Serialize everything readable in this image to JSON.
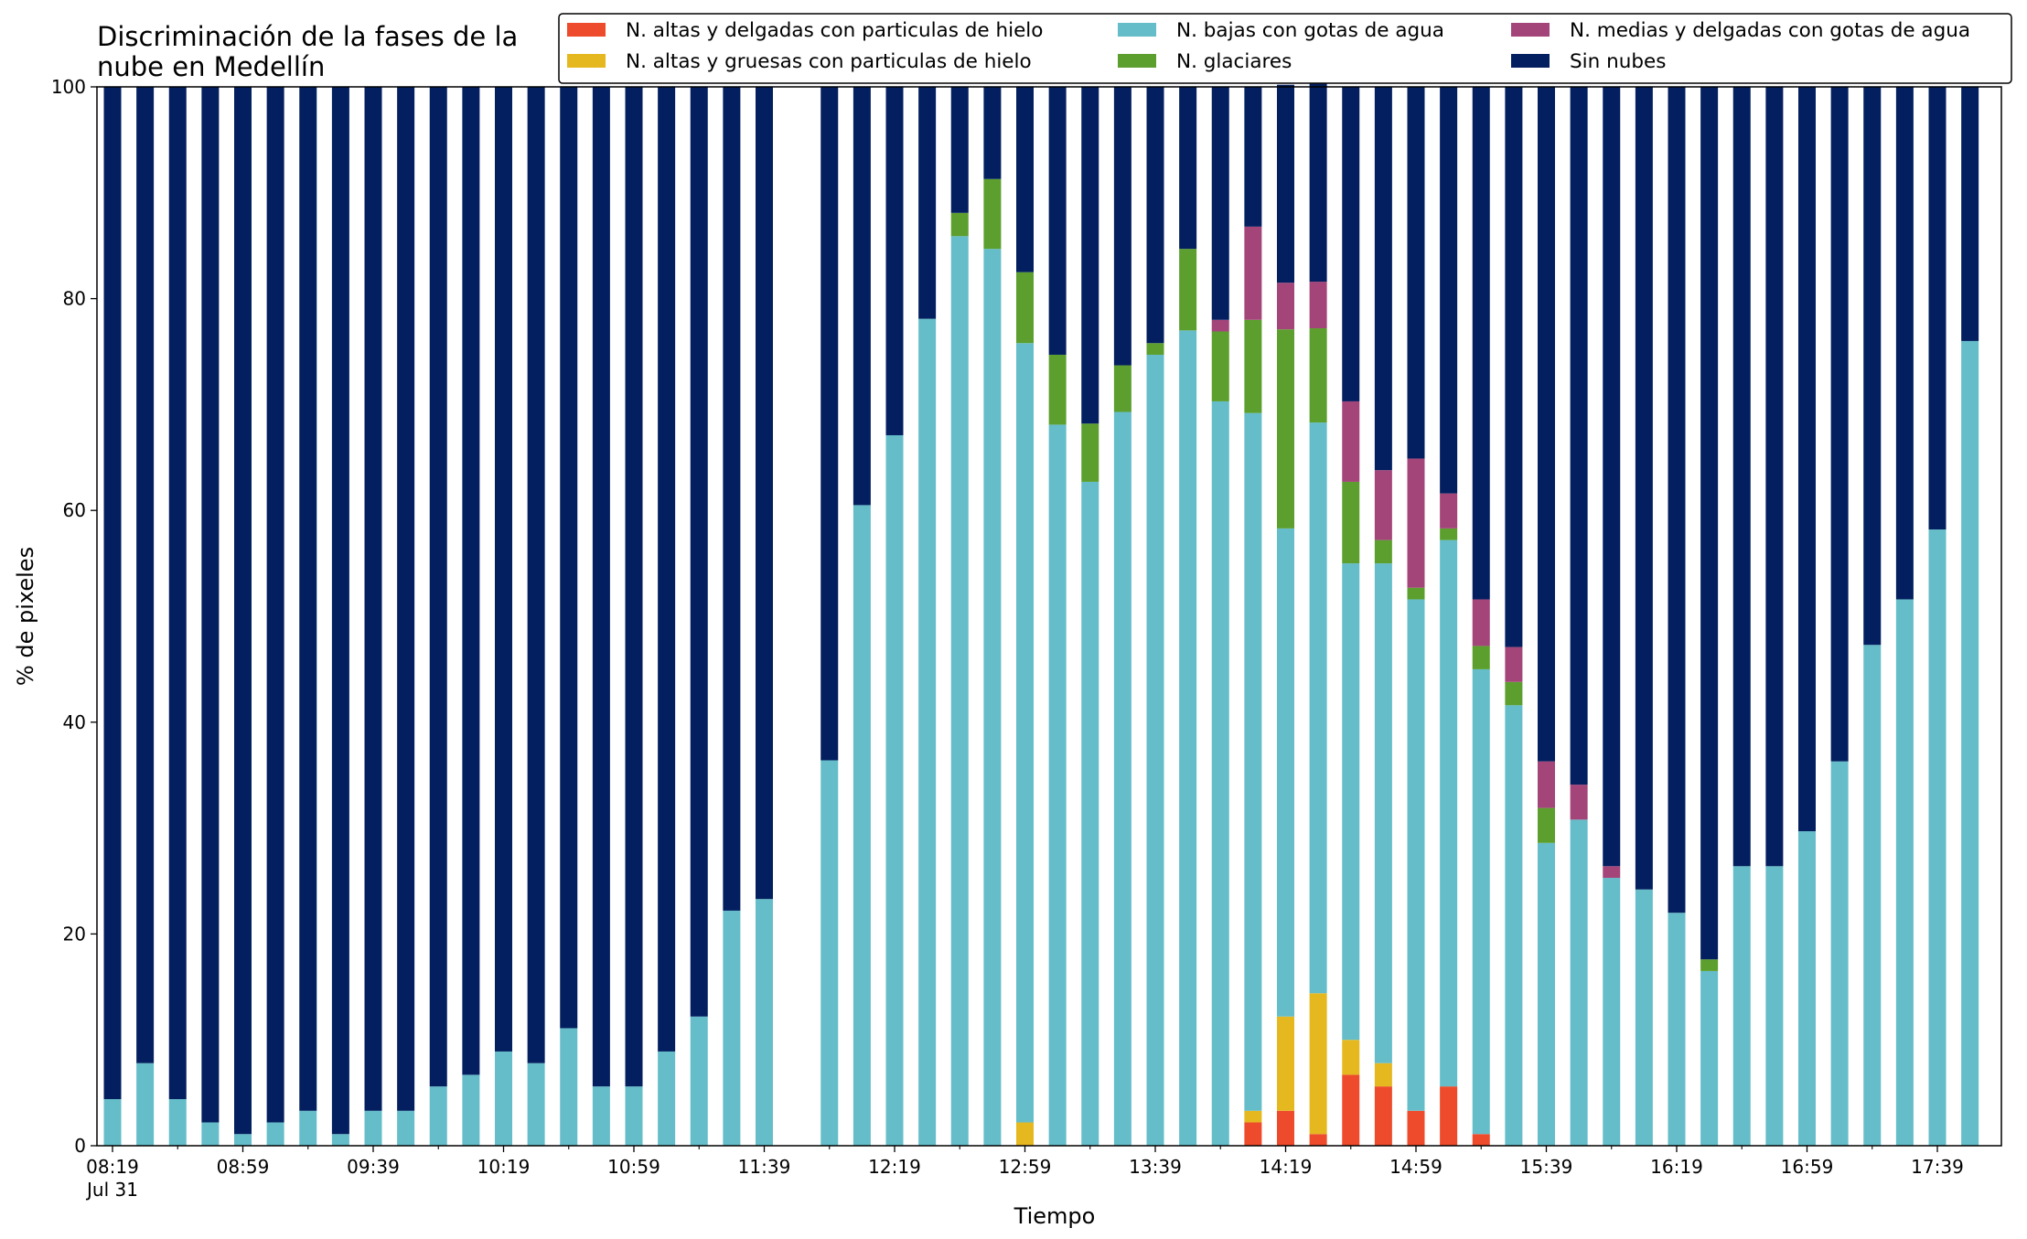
{
  "chart_data": {
    "type": "bar",
    "stacked": true,
    "title_lines": [
      "Discriminación de la fases de la",
      "nube en Medellín"
    ],
    "xlabel": "Tiempo",
    "ylabel": "% de pixeles",
    "ylim": [
      0,
      100
    ],
    "yticks": [
      0,
      20,
      40,
      60,
      80,
      100
    ],
    "xticks": [
      {
        "t": "08:19",
        "label": "08:19",
        "sublabel": "Jul 31"
      },
      {
        "t": "08:59",
        "label": "08:59"
      },
      {
        "t": "09:39",
        "label": "09:39"
      },
      {
        "t": "10:19",
        "label": "10:19"
      },
      {
        "t": "10:59",
        "label": "10:59"
      },
      {
        "t": "11:39",
        "label": "11:39"
      },
      {
        "t": "12:19",
        "label": "12:19"
      },
      {
        "t": "12:59",
        "label": "12:59"
      },
      {
        "t": "13:39",
        "label": "13:39"
      },
      {
        "t": "14:19",
        "label": "14:19"
      },
      {
        "t": "14:59",
        "label": "14:59"
      },
      {
        "t": "15:39",
        "label": "15:39"
      },
      {
        "t": "16:19",
        "label": "16:19"
      },
      {
        "t": "16:59",
        "label": "16:59"
      },
      {
        "t": "17:39",
        "label": "17:39"
      }
    ],
    "legend_location": "upper right",
    "grid": false,
    "categories": [
      "08:19",
      "08:29",
      "08:39",
      "08:49",
      "08:59",
      "09:09",
      "09:19",
      "09:29",
      "09:39",
      "09:49",
      "09:59",
      "10:09",
      "10:19",
      "10:29",
      "10:39",
      "10:49",
      "10:59",
      "11:09",
      "11:19",
      "11:29",
      "11:39",
      "11:49",
      "11:59",
      "12:09",
      "12:19",
      "12:29",
      "12:39",
      "12:49",
      "12:59",
      "13:09",
      "13:19",
      "13:29",
      "13:39",
      "13:49",
      "13:59",
      "14:09",
      "14:19",
      "14:29",
      "14:39",
      "14:49",
      "14:59",
      "15:09",
      "15:19",
      "15:29",
      "15:39",
      "15:49",
      "15:59",
      "16:09",
      "16:19",
      "16:29",
      "16:39",
      "16:49",
      "16:59",
      "17:09",
      "17:19",
      "17:29",
      "17:39",
      "17:49"
    ],
    "series": [
      {
        "name": "N. altas y delgadas con particulas de hielo",
        "color": "#ed4b2b",
        "values": [
          0,
          0,
          0,
          0,
          0,
          0,
          0,
          0,
          0,
          0,
          0,
          0,
          0,
          0,
          0,
          0,
          0,
          0,
          0,
          0,
          0,
          null,
          0,
          0,
          0,
          0,
          0,
          0,
          0,
          0,
          0,
          0,
          0,
          0,
          0,
          2.2,
          3.3,
          1.1,
          6.7,
          5.6,
          3.3,
          5.6,
          1.1,
          0,
          0,
          0,
          0,
          0,
          0,
          0,
          0,
          0,
          0,
          0,
          0,
          0,
          0,
          0
        ]
      },
      {
        "name": "N. altas y gruesas con particulas de hielo",
        "color": "#e5b81f",
        "values": [
          0,
          0,
          0,
          0,
          0,
          0,
          0,
          0,
          0,
          0,
          0,
          0,
          0,
          0,
          0,
          0,
          0,
          0,
          0,
          0,
          0,
          null,
          0,
          0,
          0,
          0,
          0,
          0,
          2.2,
          0,
          0,
          0,
          0,
          0,
          0,
          1.1,
          8.9,
          13.3,
          3.3,
          2.2,
          0,
          0,
          0,
          0,
          0,
          0,
          0,
          0,
          0,
          0,
          0,
          0,
          0,
          0,
          0,
          0,
          0,
          0
        ]
      },
      {
        "name": "N. bajas con gotas de agua",
        "color": "#65bdc9",
        "values": [
          4.4,
          7.8,
          4.4,
          2.2,
          1.1,
          2.2,
          3.3,
          1.1,
          3.3,
          3.3,
          5.6,
          6.7,
          8.9,
          7.8,
          11.1,
          5.6,
          5.6,
          8.9,
          12.2,
          22.2,
          23.3,
          null,
          36.4,
          60.5,
          67.1,
          78.1,
          85.9,
          84.7,
          73.6,
          68.1,
          62.7,
          69.3,
          74.7,
          77.0,
          70.3,
          65.9,
          46.1,
          53.9,
          45.0,
          47.2,
          48.3,
          51.6,
          43.9,
          41.6,
          28.6,
          30.8,
          25.3,
          24.2,
          22.0,
          16.5,
          26.4,
          26.4,
          29.7,
          36.3,
          47.3,
          51.6,
          58.2,
          76.0
        ]
      },
      {
        "name": "N. glaciares",
        "color": "#5c9f2e",
        "values": [
          0,
          0,
          0,
          0,
          0,
          0,
          0,
          0,
          0,
          0,
          0,
          0,
          0,
          0,
          0,
          0,
          0,
          0,
          0,
          0,
          0,
          null,
          0,
          0,
          0,
          0,
          2.2,
          6.6,
          6.7,
          6.6,
          5.5,
          4.4,
          1.1,
          7.7,
          6.6,
          8.8,
          18.8,
          8.9,
          7.7,
          2.2,
          1.1,
          1.1,
          2.2,
          2.2,
          3.3,
          0,
          0,
          0,
          0,
          1.1,
          0,
          0,
          0,
          0,
          0,
          0,
          0,
          0
        ]
      },
      {
        "name": "N. medias y delgadas con gotas de agua",
        "color": "#a4457a",
        "values": [
          0,
          0,
          0,
          0,
          0,
          0,
          0,
          0,
          0,
          0,
          0,
          0,
          0,
          0,
          0,
          0,
          0,
          0,
          0,
          0,
          0,
          null,
          0,
          0,
          0,
          0,
          0,
          0,
          0,
          0,
          0,
          0,
          0,
          0,
          1.1,
          8.8,
          4.4,
          4.4,
          7.6,
          6.6,
          12.2,
          3.3,
          4.4,
          3.3,
          4.4,
          3.3,
          1.1,
          0,
          0,
          0,
          0,
          0,
          0,
          0,
          0,
          0,
          0,
          0
        ]
      },
      {
        "name": "Sin nubes",
        "color": "#031f5f",
        "values": [
          95.6,
          92.2,
          95.6,
          97.8,
          98.9,
          97.8,
          96.7,
          98.9,
          96.7,
          96.7,
          94.4,
          93.3,
          91.1,
          92.2,
          88.9,
          94.4,
          94.4,
          91.1,
          87.8,
          77.8,
          76.7,
          null,
          63.6,
          39.5,
          32.9,
          21.9,
          11.9,
          8.7,
          17.5,
          25.3,
          31.8,
          26.3,
          24.2,
          15.3,
          22.0,
          13.2,
          18.7,
          18.7,
          29.7,
          36.2,
          35.1,
          38.4,
          48.4,
          52.9,
          63.7,
          65.9,
          73.6,
          75.8,
          78.0,
          82.4,
          73.6,
          73.6,
          70.3,
          63.7,
          52.7,
          48.4,
          41.8,
          24.0
        ]
      }
    ]
  }
}
